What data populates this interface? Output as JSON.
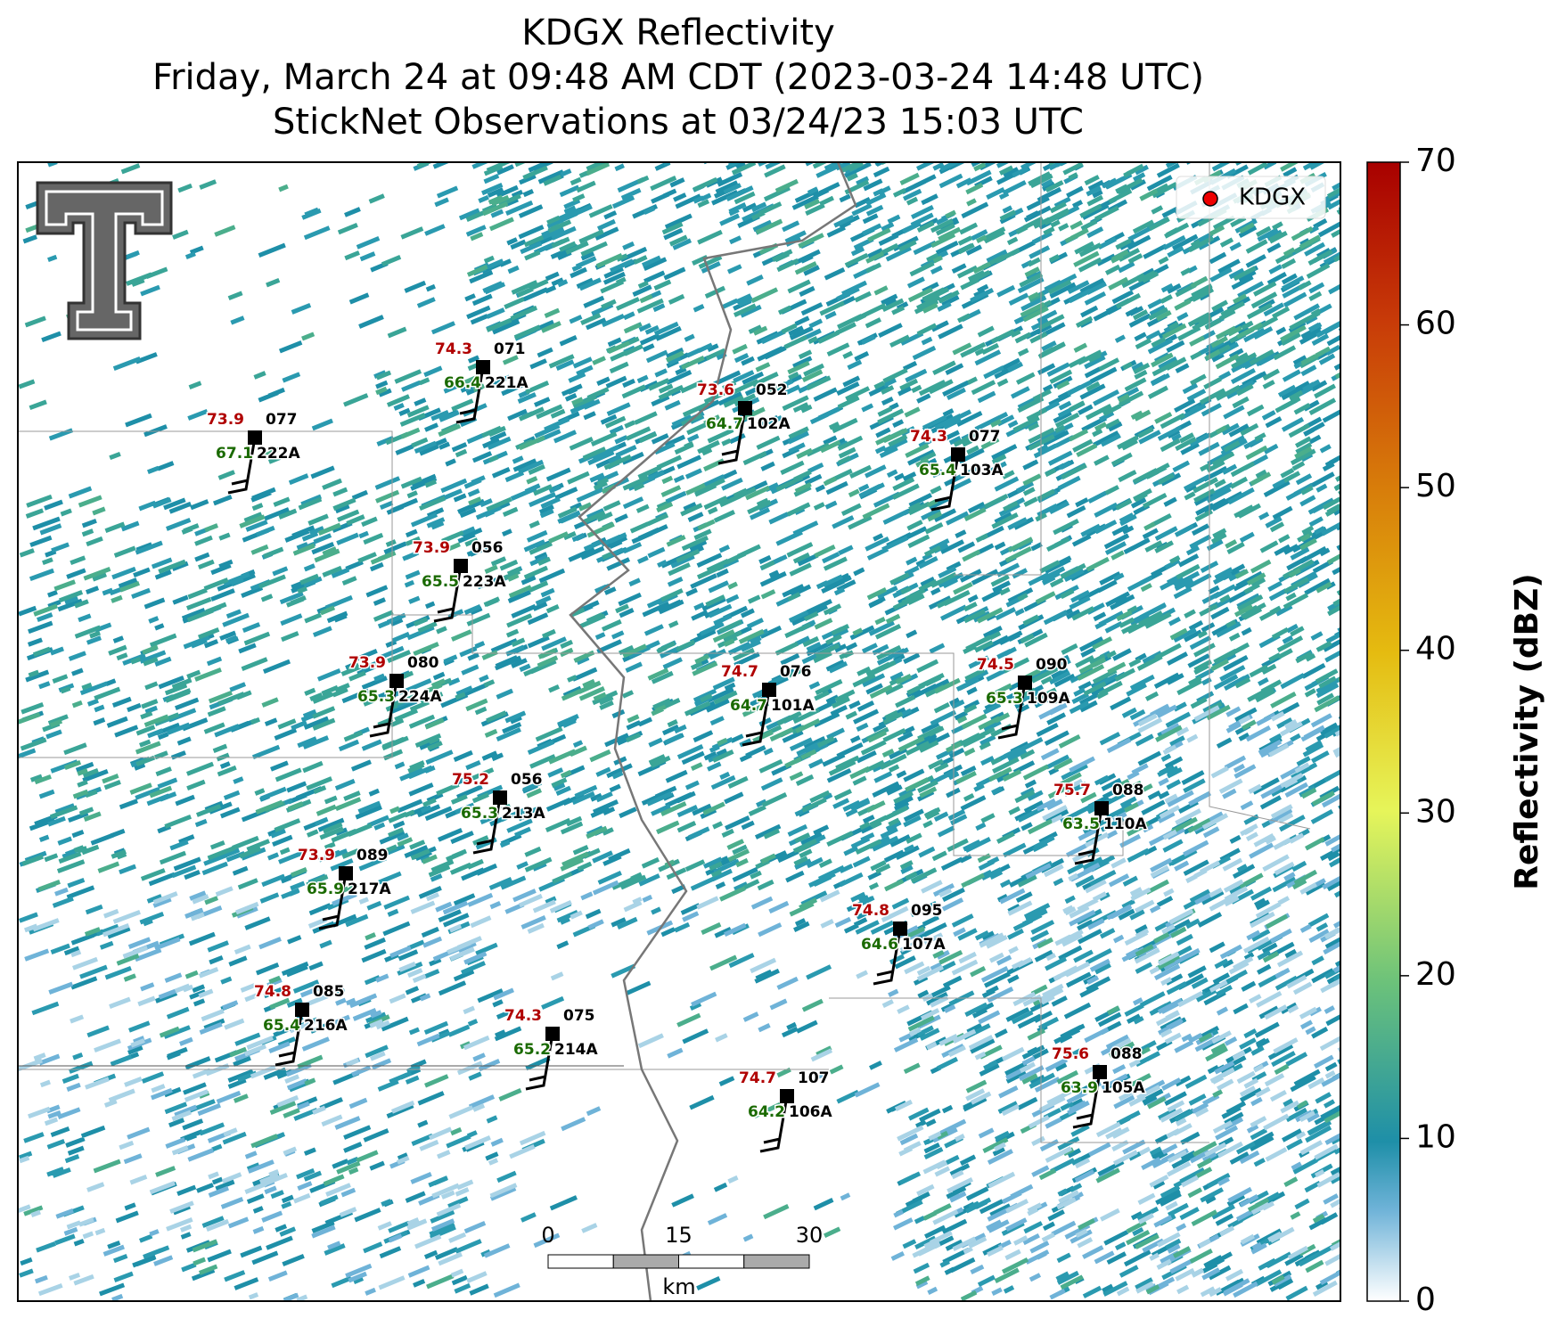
{
  "title": [
    "KDGX Reflectivity",
    "Friday, March 24 at 09:48 AM CDT (2023-03-24 14:48 UTC)",
    "StickNet Observations at 03/24/23 15:03 UTC"
  ],
  "legend": "KDGX",
  "colorbar": {
    "label": "Reflectivity (dBZ)",
    "lim": [
      0,
      70
    ],
    "ticks": [
      0,
      10,
      20,
      30,
      40,
      50,
      60,
      70
    ]
  },
  "scale_bar": {
    "ticks": [
      0,
      15,
      30
    ],
    "unit": "km"
  },
  "stations": [
    {
      "temperature": 74.3,
      "dewpoint": 66.4,
      "value": "071",
      "id": "221A"
    },
    {
      "temperature": 73.9,
      "dewpoint": 67.1,
      "value": "077",
      "id": "222A"
    },
    {
      "temperature": 73.6,
      "dewpoint": 64.7,
      "value": "052",
      "id": "102A"
    },
    {
      "temperature": 74.3,
      "dewpoint": 65.4,
      "value": "077",
      "id": "103A"
    },
    {
      "temperature": 73.9,
      "dewpoint": 65.5,
      "value": "056",
      "id": "223A"
    },
    {
      "temperature": 73.9,
      "dewpoint": 65.3,
      "value": "080",
      "id": "224A"
    },
    {
      "temperature": 74.7,
      "dewpoint": 64.7,
      "value": "076",
      "id": "101A"
    },
    {
      "temperature": 74.5,
      "dewpoint": 65.3,
      "value": "090",
      "id": "109A"
    },
    {
      "temperature": 75.2,
      "dewpoint": 65.3,
      "value": "056",
      "id": "213A"
    },
    {
      "temperature": 75.7,
      "dewpoint": 63.5,
      "value": "088",
      "id": "110A"
    },
    {
      "temperature": 73.9,
      "dewpoint": 65.9,
      "value": "089",
      "id": "217A"
    },
    {
      "temperature": 74.8,
      "dewpoint": 64.6,
      "value": "095",
      "id": "107A"
    },
    {
      "temperature": 74.8,
      "dewpoint": 65.4,
      "value": "085",
      "id": "216A"
    },
    {
      "temperature": 74.3,
      "dewpoint": 65.2,
      "value": "075",
      "id": "214A"
    },
    {
      "temperature": 74.7,
      "dewpoint": 64.2,
      "value": "107",
      "id": "106A"
    },
    {
      "temperature": 75.6,
      "dewpoint": 63.9,
      "value": "088",
      "id": "105A"
    }
  ]
}
